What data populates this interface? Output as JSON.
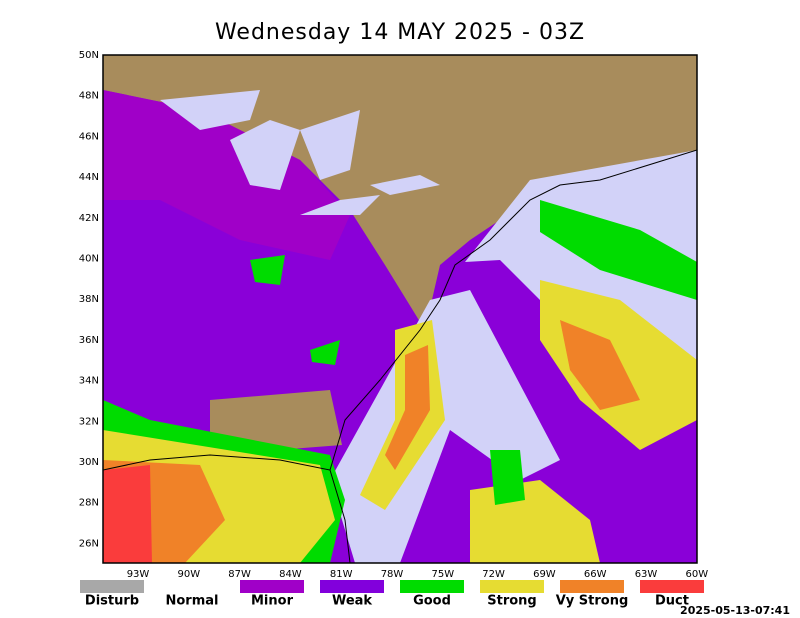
{
  "title": "Wednesday 14 MAY 2025 - 03Z",
  "map": {
    "lat_labels": [
      "50N",
      "48N",
      "46N",
      "44N",
      "42N",
      "40N",
      "38N",
      "36N",
      "34N",
      "32N",
      "30N",
      "28N",
      "26N"
    ],
    "lon_labels": [
      "93W",
      "90W",
      "87W",
      "84W",
      "81W",
      "78W",
      "75W",
      "72W",
      "69W",
      "66W",
      "63W",
      "60W"
    ]
  },
  "legend": [
    {
      "label": "Disturb",
      "color": "#a8a8a8"
    },
    {
      "label": "Normal",
      "color": "#ffffff"
    },
    {
      "label": "Minor",
      "color": "#a000c8"
    },
    {
      "label": "Weak",
      "color": "#8200dc"
    },
    {
      "label": "Good",
      "color": "#00dc00"
    },
    {
      "label": "Strong",
      "color": "#e6dc32"
    },
    {
      "label": "Vy Strong",
      "color": "#f08228"
    },
    {
      "label": "Duct",
      "color": "#fa3c3c"
    }
  ],
  "timestamp": "2025-05-13-07:41"
}
